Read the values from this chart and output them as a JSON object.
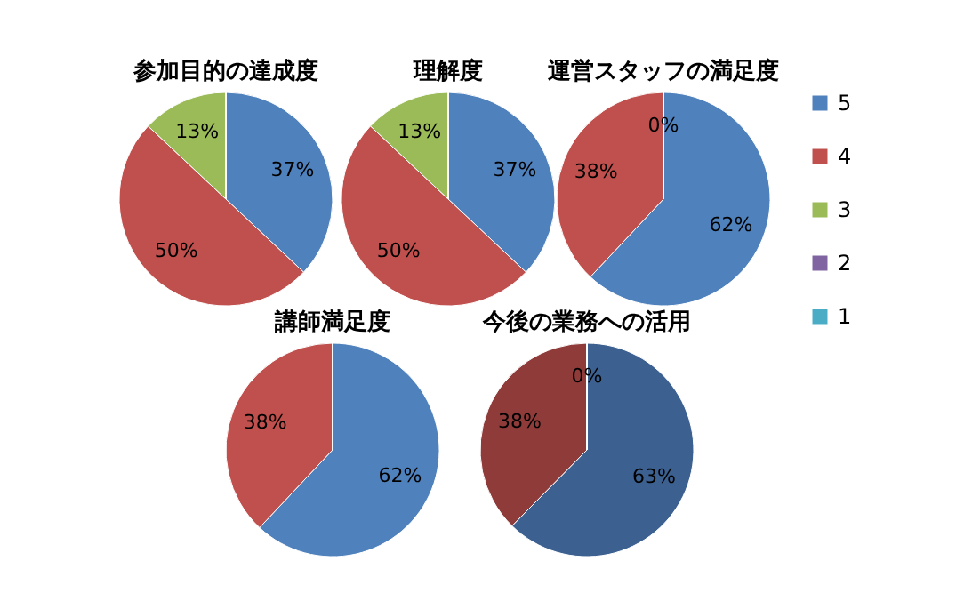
{
  "chart_data": [
    {
      "type": "pie",
      "title": "参加目的の達成度",
      "categories": [
        null,
        null,
        null,
        null,
        null
      ],
      "values": [
        37,
        50,
        13,
        0,
        0
      ],
      "value_labels": [
        "37%",
        "50%",
        "13%",
        null,
        null
      ],
      "colors": [
        "#4f81bd",
        "#c0504d",
        "#9bbb59",
        "#8064a2",
        "#4bacc6"
      ]
    },
    {
      "type": "pie",
      "title": "理解度",
      "categories": [
        null,
        null,
        null,
        null,
        null
      ],
      "values": [
        37,
        50,
        13,
        0,
        0
      ],
      "value_labels": [
        "37%",
        "50%",
        "13%",
        null,
        null
      ],
      "colors": [
        "#4f81bd",
        "#c0504d",
        "#9bbb59",
        "#8064a2",
        "#4bacc6"
      ]
    },
    {
      "type": "pie",
      "title": "運営スタッフの満足度",
      "categories": [
        "5",
        "4",
        "3",
        "2",
        "1"
      ],
      "values": [
        62,
        38,
        0,
        0,
        0
      ],
      "value_labels": [
        "62%",
        "38%",
        "0%",
        null,
        null
      ],
      "colors": [
        "#4f81bd",
        "#c0504d",
        "#9bbb59",
        "#8064a2",
        "#4bacc6"
      ],
      "legend": "right"
    },
    {
      "type": "pie",
      "title": "講師満足度",
      "categories": [
        null,
        null,
        null,
        null,
        null
      ],
      "values": [
        62,
        38,
        0,
        0,
        0
      ],
      "value_labels": [
        "62%",
        "38%",
        null,
        null,
        null
      ],
      "colors": [
        "#4f81bd",
        "#c0504d",
        "#9bbb59",
        "#8064a2",
        "#4bacc6"
      ]
    },
    {
      "type": "pie",
      "title": "今後の業務への活用",
      "categories": [
        null,
        null,
        null,
        null,
        null
      ],
      "values": [
        63,
        38,
        0,
        0,
        0
      ],
      "value_labels": [
        "63%",
        "38%",
        "0%",
        null,
        null
      ],
      "colors": [
        "#3c6190",
        "#8e3b39",
        "#9bbb59",
        "#8064a2",
        "#4bacc6"
      ]
    }
  ]
}
